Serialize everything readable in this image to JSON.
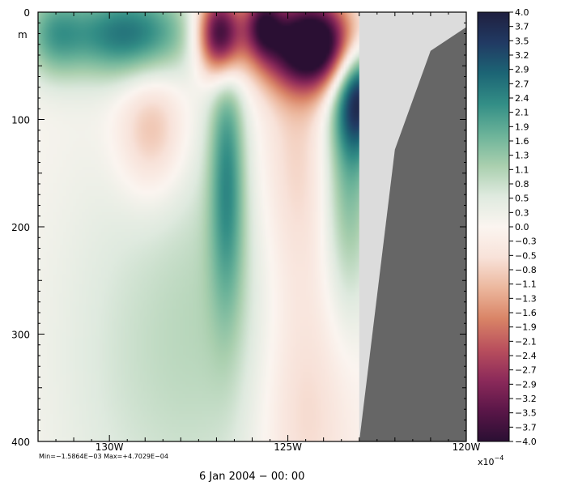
{
  "chart_data": {
    "type": "heatmap",
    "title": "",
    "xlabel": "",
    "ylabel": "m",
    "x_ticks": [
      {
        "lon": 130,
        "label": "130W"
      },
      {
        "lon": 125,
        "label": "125W"
      },
      {
        "lon": 120,
        "label": "120W"
      }
    ],
    "xlim_lon_west": [
      132,
      120
    ],
    "y_ticks": [
      0,
      100,
      200,
      300,
      400
    ],
    "ylim_depth": [
      0,
      400
    ],
    "colorbar": {
      "labels": [
        "4.0",
        "3.7",
        "3.5",
        "3.2",
        "2.9",
        "2.7",
        "2.4",
        "2.1",
        "1.9",
        "1.6",
        "1.3",
        "1.1",
        "0.8",
        "0.5",
        "0.3",
        "0.0",
        "−0.3",
        "−0.5",
        "−0.8",
        "−1.1",
        "−1.3",
        "−1.6",
        "−1.9",
        "−2.1",
        "−2.4",
        "−2.7",
        "−2.9",
        "−3.2",
        "−3.5",
        "−3.7",
        "−4.0"
      ],
      "range": [
        -4.0,
        4.0
      ],
      "multiplier": "x10",
      "exponent": "−4",
      "colors": [
        "#2a0f33",
        "#5a1648",
        "#8c2a5a",
        "#b94f5d",
        "#d98466",
        "#ecb79d",
        "#f8e2d9",
        "#fbf5f0",
        "#dfeadf",
        "#a9cfae",
        "#6bb399",
        "#338e86",
        "#1c6575",
        "#213a63",
        "#1f1f3f"
      ]
    },
    "stats_text": "Min=−1.5864E−03  Max=+4.7029E−04",
    "time_label": "6 Jan 2004 − 00: 00",
    "land_color": "#666666",
    "shelf_color": "#dcdcdc",
    "anomalies": [
      {
        "lon": 126.9,
        "depth": 20,
        "value": -4.5,
        "slon": 0.45,
        "sdepth": 28
      },
      {
        "lon": 124.2,
        "depth": 30,
        "value": -5.0,
        "slon": 1.1,
        "sdepth": 30
      },
      {
        "lon": 125.7,
        "depth": 10,
        "value": -2.5,
        "slon": 0.35,
        "sdepth": 22
      },
      {
        "lon": 123.0,
        "depth": 70,
        "value": 3.5,
        "slon": 0.5,
        "sdepth": 40
      },
      {
        "lon": 129.5,
        "depth": 20,
        "value": 2.6,
        "slon": 1.3,
        "sdepth": 30
      },
      {
        "lon": 131.6,
        "depth": 20,
        "value": 1.4,
        "slon": 0.6,
        "sdepth": 30
      },
      {
        "lon": 126.7,
        "depth": 150,
        "value": 1.8,
        "slon": 0.35,
        "sdepth": 90
      },
      {
        "lon": 123.3,
        "depth": 150,
        "value": 1.6,
        "slon": 0.5,
        "sdepth": 90
      },
      {
        "lon": 128.8,
        "depth": 110,
        "value": -1.3,
        "slon": 0.7,
        "sdepth": 45
      },
      {
        "lon": 124.8,
        "depth": 140,
        "value": -1.0,
        "slon": 0.8,
        "sdepth": 110
      },
      {
        "lon": 124.6,
        "depth": 380,
        "value": -0.8,
        "slon": 1.0,
        "sdepth": 80
      },
      {
        "lon": 129.0,
        "depth": 320,
        "value": 0.7,
        "slon": 2.0,
        "sdepth": 150
      },
      {
        "lon": 126.5,
        "depth": 260,
        "value": 0.6,
        "slon": 1.5,
        "sdepth": 150
      }
    ],
    "shelf_outline": [
      [
        123.0,
        0
      ],
      [
        123.0,
        400
      ],
      [
        120.0,
        400
      ],
      [
        120.0,
        0
      ]
    ],
    "land_outline": [
      [
        123.0,
        400
      ],
      [
        122.0,
        128
      ],
      [
        121.0,
        36
      ],
      [
        120.0,
        14
      ],
      [
        120.0,
        400
      ]
    ]
  }
}
